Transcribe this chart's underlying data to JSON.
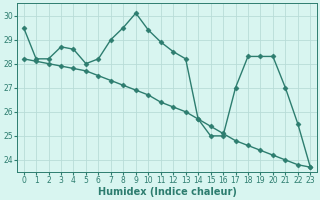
{
  "xlabel": "Humidex (Indice chaleur)",
  "x": [
    0,
    1,
    2,
    3,
    4,
    5,
    6,
    7,
    8,
    9,
    10,
    11,
    12,
    13,
    14,
    15,
    16,
    17,
    18,
    19,
    20,
    21,
    22,
    23
  ],
  "line1": [
    29.5,
    28.2,
    28.2,
    28.7,
    28.6,
    28.0,
    28.2,
    29.0,
    29.5,
    30.1,
    29.4,
    28.9,
    28.5,
    28.2,
    25.7,
    25.0,
    25.0,
    27.0,
    28.3,
    28.3,
    28.3,
    27.0,
    25.5,
    23.7
  ],
  "line2": [
    28.2,
    28.1,
    28.0,
    27.9,
    27.8,
    27.7,
    27.5,
    27.3,
    27.1,
    26.9,
    26.7,
    26.4,
    26.2,
    26.0,
    25.7,
    25.4,
    25.1,
    24.8,
    24.6,
    24.4,
    24.2,
    24.0,
    23.8,
    23.7
  ],
  "line_color": "#2d7d6f",
  "bg_color": "#d8f5f0",
  "grid_color": "#b8dcd8",
  "ylim": [
    23.5,
    30.5
  ],
  "xlim": [
    -0.5,
    23.5
  ],
  "yticks": [
    24,
    25,
    26,
    27,
    28,
    29,
    30
  ],
  "xticks": [
    0,
    1,
    2,
    3,
    4,
    5,
    6,
    7,
    8,
    9,
    10,
    11,
    12,
    13,
    14,
    15,
    16,
    17,
    18,
    19,
    20,
    21,
    22,
    23
  ],
  "marker": "D",
  "markersize": 2.5,
  "linewidth": 1.0,
  "tick_fontsize": 5.5,
  "label_fontsize": 7
}
